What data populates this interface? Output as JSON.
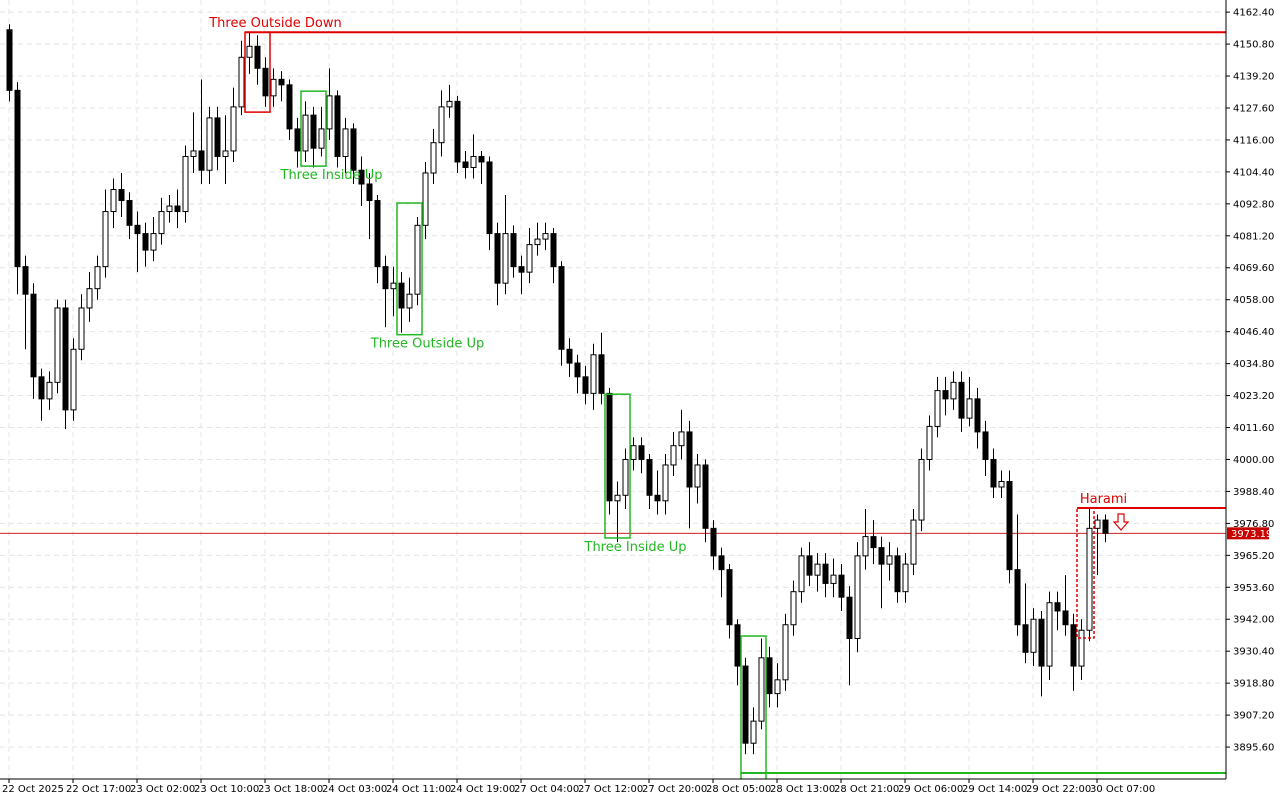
{
  "chart_data": {
    "type": "candlestick",
    "grid": true,
    "up_color": "#ffffff",
    "down_color": "#000000",
    "ylim": [
      3884.0,
      4166.8
    ],
    "yticks": [
      {
        "value": 4162.4,
        "label": "4162.40"
      },
      {
        "value": 4150.8,
        "label": "4150.80"
      },
      {
        "value": 4139.2,
        "label": "4139.20"
      },
      {
        "value": 4127.6,
        "label": "4127.60"
      },
      {
        "value": 4116.0,
        "label": "4116.00"
      },
      {
        "value": 4104.4,
        "label": "4104.40"
      },
      {
        "value": 4092.8,
        "label": "4092.80"
      },
      {
        "value": 4081.2,
        "label": "4081.20"
      },
      {
        "value": 4069.6,
        "label": "4069.60"
      },
      {
        "value": 4058.0,
        "label": "4058.00"
      },
      {
        "value": 4046.4,
        "label": "4046.40"
      },
      {
        "value": 4034.8,
        "label": "4034.80"
      },
      {
        "value": 4023.2,
        "label": "4023.20"
      },
      {
        "value": 4011.6,
        "label": "4011.60"
      },
      {
        "value": 4000.0,
        "label": "4000.00"
      },
      {
        "value": 3988.4,
        "label": "3988.40"
      },
      {
        "value": 3976.8,
        "label": "3976.80"
      },
      {
        "value": 3965.2,
        "label": "3965.20"
      },
      {
        "value": 3953.6,
        "label": "3953.60"
      },
      {
        "value": 3942.0,
        "label": "3942.00"
      },
      {
        "value": 3930.4,
        "label": "3930.40"
      },
      {
        "value": 3918.8,
        "label": "3918.80"
      },
      {
        "value": 3907.2,
        "label": "3907.20"
      },
      {
        "value": 3895.6,
        "label": "3895.60"
      }
    ],
    "categories": [
      "22 Oct 2025",
      null,
      null,
      null,
      null,
      null,
      null,
      null,
      "22 Oct 17:00",
      null,
      null,
      null,
      null,
      null,
      null,
      null,
      "23 Oct 02:00",
      null,
      null,
      null,
      null,
      null,
      null,
      null,
      "23 Oct 10:00",
      null,
      null,
      null,
      null,
      null,
      null,
      null,
      "23 Oct 18:00",
      null,
      null,
      null,
      null,
      null,
      null,
      null,
      "24 Oct 03:00",
      null,
      null,
      null,
      null,
      null,
      null,
      null,
      "24 Oct 11:00",
      null,
      null,
      null,
      null,
      null,
      null,
      null,
      "24 Oct 19:00",
      null,
      null,
      null,
      null,
      null,
      null,
      null,
      "27 Oct 04:00",
      null,
      null,
      null,
      null,
      null,
      null,
      null,
      "27 Oct 12:00",
      null,
      null,
      null,
      null,
      null,
      null,
      null,
      "27 Oct 20:00",
      null,
      null,
      null,
      null,
      null,
      null,
      null,
      "28 Oct 05:00",
      null,
      null,
      null,
      null,
      null,
      null,
      null,
      "28 Oct 13:00",
      null,
      null,
      null,
      null,
      null,
      null,
      null,
      "28 Oct 21:00",
      null,
      null,
      null,
      null,
      null,
      null,
      null,
      "29 Oct 06:00",
      null,
      null,
      null,
      null,
      null,
      null,
      null,
      "29 Oct 14:00",
      null,
      null,
      null,
      null,
      null,
      null,
      null,
      "29 Oct 22:00",
      null,
      null,
      null,
      null,
      null,
      null,
      null,
      "30 Oct 07:00",
      null
    ],
    "open": [
      4156,
      4134,
      4070,
      4060,
      4030,
      4022,
      4028,
      4055,
      4018,
      4040,
      4055,
      4062,
      4070,
      4090,
      4098,
      4094,
      4085,
      4082,
      4076,
      4082,
      4090,
      4092,
      4090,
      4110,
      4112,
      4105,
      4124,
      4110,
      4112,
      4128,
      4146,
      4150,
      4142,
      4132,
      4138,
      4136,
      4120,
      4112,
      4125,
      4113,
      4120,
      4132,
      4110,
      4120,
      4105,
      4100,
      4094,
      4070,
      4062,
      4064,
      4055,
      4060,
      4085,
      4104,
      4115,
      4128,
      4130,
      4108,
      4106,
      4110,
      4108,
      4082,
      4064,
      4082,
      4070,
      4068,
      4078,
      4080,
      4082,
      4070,
      4040,
      4035,
      4030,
      4024,
      4038,
      4024,
      3985,
      3987,
      4000,
      4005,
      4000,
      3987,
      3985,
      3998,
      4005,
      4010,
      3990,
      3998,
      3975,
      3965,
      3960,
      3940,
      3925,
      3897,
      3905,
      3928,
      3915,
      3920,
      3940,
      3952,
      3965,
      3958,
      3962,
      3955,
      3958,
      3950,
      3935,
      3965,
      3972,
      3968,
      3962,
      3965,
      3952,
      3962,
      3978,
      4000,
      4012,
      4025,
      4022,
      4028,
      4015,
      4022,
      4010,
      4000,
      3990,
      3992,
      3960,
      3940,
      3930,
      3942,
      3925,
      3948,
      3945,
      3940,
      3925,
      3938,
      3975,
      3978
    ],
    "high": [
      4158,
      4137,
      4074,
      4064,
      4033,
      4032,
      4058,
      4058,
      4044,
      4060,
      4068,
      4074,
      4098,
      4102,
      4104,
      4097,
      4090,
      4086,
      4088,
      4095,
      4096,
      4098,
      4114,
      4126,
      4138,
      4128,
      4128,
      4125,
      4135,
      4152,
      4155,
      4154,
      4146,
      4142,
      4141,
      4138,
      4124,
      4130,
      4128,
      4128,
      4142,
      4134,
      4124,
      4122,
      4110,
      4104,
      4096,
      4074,
      4070,
      4068,
      4066,
      4088,
      4108,
      4120,
      4134,
      4136,
      4132,
      4112,
      4118,
      4112,
      4110,
      4086,
      4096,
      4085,
      4074,
      4084,
      4086,
      4086,
      4084,
      4072,
      4044,
      4038,
      4034,
      4042,
      4046,
      4026,
      3992,
      4004,
      4008,
      4008,
      4002,
      3996,
      4002,
      4010,
      4018,
      4014,
      4002,
      4000,
      3978,
      3968,
      3962,
      3942,
      3928,
      3910,
      3935,
      3932,
      3926,
      3944,
      3956,
      3968,
      3970,
      3966,
      3966,
      3964,
      3962,
      3954,
      3970,
      3982,
      3978,
      3972,
      3970,
      3968,
      3966,
      3982,
      4004,
      4016,
      4030,
      4030,
      4032,
      4032,
      4030,
      4026,
      4014,
      4004,
      3996,
      3996,
      3980,
      3955,
      3946,
      3945,
      3952,
      3952,
      3958,
      3944,
      3942,
      3982,
      3980,
      3980
    ],
    "low": [
      4130,
      4060,
      4040,
      4022,
      4014,
      4018,
      4024,
      4011,
      4014,
      4036,
      4050,
      4058,
      4066,
      4084,
      4088,
      4080,
      4068,
      4070,
      4072,
      4078,
      4086,
      4084,
      4086,
      4104,
      4100,
      4100,
      4105,
      4100,
      4108,
      4125,
      4140,
      4136,
      4128,
      4128,
      4130,
      4116,
      4106,
      4108,
      4106,
      4110,
      4116,
      4106,
      4104,
      4100,
      4092,
      4080,
      4064,
      4048,
      4052,
      4046,
      4050,
      4056,
      4080,
      4100,
      4110,
      4124,
      4104,
      4102,
      4102,
      4100,
      4076,
      4056,
      4060,
      4066,
      4060,
      4064,
      4074,
      4076,
      4064,
      4034,
      4030,
      4024,
      4020,
      4018,
      4020,
      3980,
      3970,
      3982,
      3996,
      3995,
      3982,
      3980,
      3980,
      3994,
      4000,
      3975,
      3984,
      3970,
      3960,
      3950,
      3935,
      3918,
      3893,
      3893,
      3902,
      3910,
      3910,
      3916,
      3936,
      3948,
      3954,
      3952,
      3950,
      3950,
      3945,
      3918,
      3930,
      3960,
      3962,
      3946,
      3956,
      3948,
      3948,
      3958,
      3974,
      3996,
      4008,
      4016,
      4018,
      4010,
      4012,
      4004,
      3994,
      3986,
      3986,
      3955,
      3936,
      3926,
      3925,
      3914,
      3920,
      3938,
      3936,
      3916,
      3920,
      3934,
      3958,
      3970
    ],
    "close": [
      4134,
      4070,
      4060,
      4030,
      4022,
      4028,
      4055,
      4018,
      4040,
      4055,
      4062,
      4070,
      4090,
      4098,
      4094,
      4085,
      4082,
      4076,
      4082,
      4090,
      4092,
      4090,
      4110,
      4112,
      4105,
      4124,
      4110,
      4112,
      4128,
      4146,
      4150,
      4142,
      4132,
      4138,
      4136,
      4120,
      4112,
      4125,
      4113,
      4120,
      4132,
      4110,
      4120,
      4105,
      4100,
      4094,
      4070,
      4062,
      4064,
      4055,
      4060,
      4085,
      4104,
      4115,
      4128,
      4130,
      4108,
      4106,
      4110,
      4108,
      4082,
      4064,
      4082,
      4070,
      4068,
      4078,
      4080,
      4082,
      4070,
      4040,
      4035,
      4030,
      4024,
      4038,
      4024,
      3985,
      3987,
      4000,
      4005,
      4000,
      3987,
      3985,
      3998,
      4005,
      4010,
      3990,
      3998,
      3975,
      3965,
      3960,
      3940,
      3925,
      3897,
      3905,
      3928,
      3915,
      3920,
      3940,
      3952,
      3965,
      3958,
      3962,
      3955,
      3958,
      3950,
      3935,
      3965,
      3972,
      3968,
      3962,
      3965,
      3952,
      3962,
      3978,
      4000,
      4012,
      4025,
      4022,
      4028,
      4015,
      4022,
      4010,
      4000,
      3990,
      3992,
      3960,
      3940,
      3930,
      3942,
      3925,
      3948,
      3945,
      3940,
      3925,
      3938,
      3975,
      3978,
      3973.19
    ],
    "current_price": 3973.19,
    "current_price_color": "#c80000",
    "patterns": [
      {
        "label": "Three Outside Down",
        "color": "#e00000",
        "first_bar": 30,
        "last_bar": 32,
        "top": 4155.1,
        "bottom": 4126.1,
        "level": 4155.1,
        "label_side": "above"
      },
      {
        "label": "Three Inside Up",
        "color": "#22b822",
        "first_bar": 37,
        "last_bar": 39,
        "top": 4133.7,
        "bottom": 4106.5,
        "label_side": "below"
      },
      {
        "label": "Three Outside Up",
        "color": "#22b822",
        "first_bar": 49,
        "last_bar": 51,
        "top": 4093.1,
        "bottom": 4045.3,
        "label_side": "below"
      },
      {
        "label": "Three Inside Up",
        "color": "#22b822",
        "first_bar": 75,
        "last_bar": 77,
        "top": 4023.7,
        "bottom": 3971.5,
        "label_side": "below"
      },
      {
        "color": "#22b822",
        "first_bar": 92,
        "last_bar": 94,
        "top": 3935.9,
        "bottom": 3880.0,
        "level": 3886.2
      },
      {
        "label": "Harami",
        "color": "#e00000",
        "first_bar": 134,
        "last_bar": 135,
        "top": 3982.4,
        "bottom": 3935.2,
        "level": 3982.4,
        "label_side": "above"
      }
    ]
  }
}
